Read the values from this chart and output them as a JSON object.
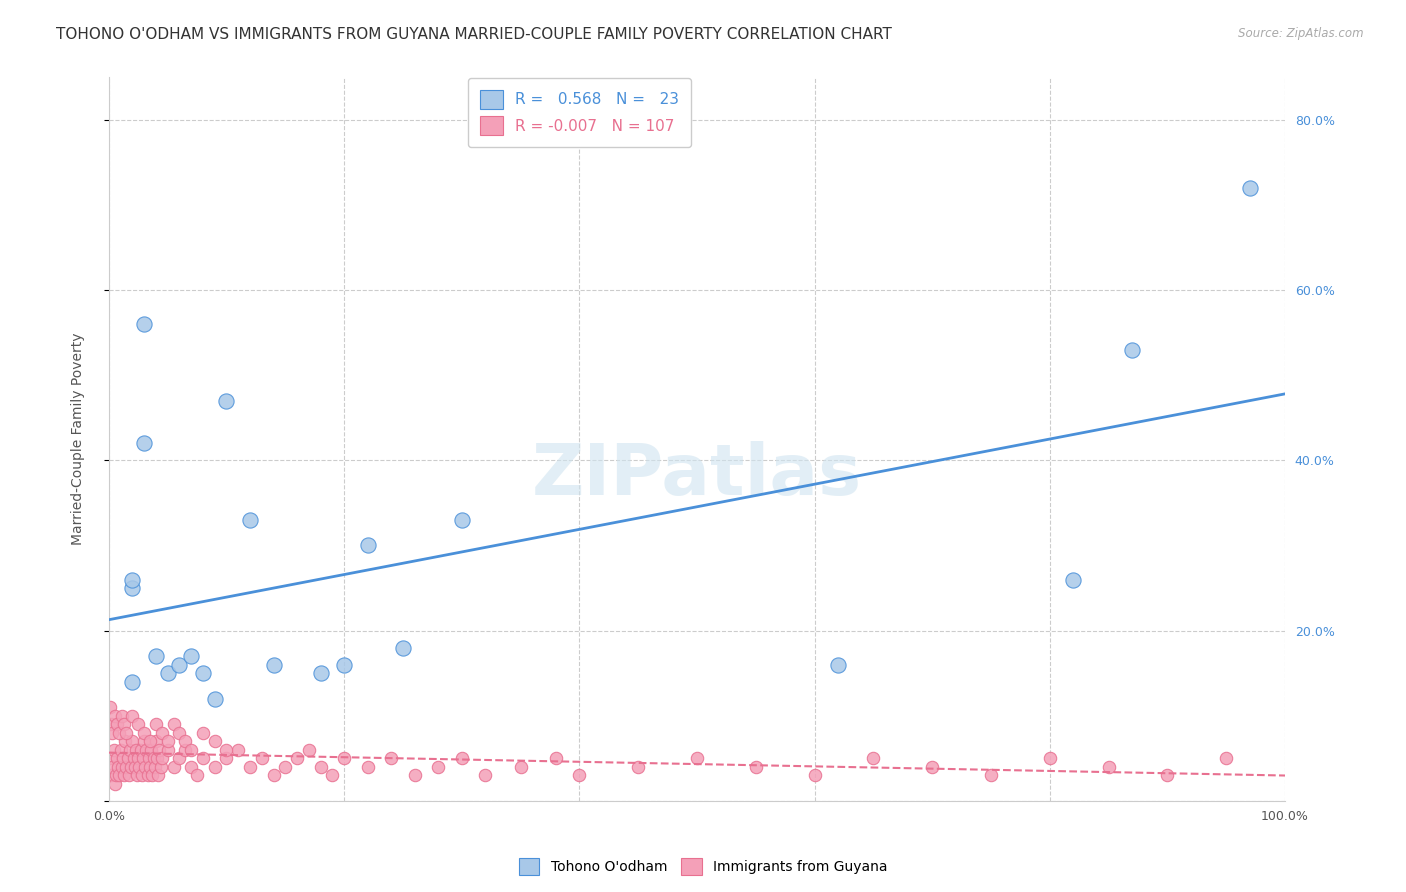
{
  "title": "TOHONO O'ODHAM VS IMMIGRANTS FROM GUYANA MARRIED-COUPLE FAMILY POVERTY CORRELATION CHART",
  "source": "Source: ZipAtlas.com",
  "ylabel": "Married-Couple Family Poverty",
  "xlim": [
    0.0,
    1.0
  ],
  "ylim": [
    0.0,
    0.85
  ],
  "blue_R": 0.568,
  "blue_N": 23,
  "pink_R": -0.007,
  "pink_N": 107,
  "blue_color": "#a8c8e8",
  "pink_color": "#f4a0b8",
  "blue_line_color": "#4a90d9",
  "pink_line_color": "#e87090",
  "watermark": "ZIPatlas",
  "blue_points_x": [
    0.02,
    0.02,
    0.03,
    0.03,
    0.04,
    0.05,
    0.06,
    0.07,
    0.08,
    0.09,
    0.1,
    0.12,
    0.14,
    0.18,
    0.2,
    0.22,
    0.25,
    0.3,
    0.62,
    0.82,
    0.87,
    0.97,
    0.02
  ],
  "blue_points_y": [
    0.25,
    0.14,
    0.56,
    0.42,
    0.17,
    0.15,
    0.16,
    0.17,
    0.15,
    0.12,
    0.47,
    0.33,
    0.16,
    0.15,
    0.16,
    0.3,
    0.18,
    0.33,
    0.16,
    0.26,
    0.53,
    0.72,
    0.26
  ],
  "pink_points_x": [
    0.001,
    0.002,
    0.003,
    0.004,
    0.005,
    0.006,
    0.007,
    0.008,
    0.009,
    0.01,
    0.011,
    0.012,
    0.013,
    0.014,
    0.015,
    0.016,
    0.017,
    0.018,
    0.019,
    0.02,
    0.021,
    0.022,
    0.023,
    0.024,
    0.025,
    0.026,
    0.027,
    0.028,
    0.029,
    0.03,
    0.031,
    0.032,
    0.033,
    0.034,
    0.035,
    0.036,
    0.037,
    0.038,
    0.039,
    0.04,
    0.041,
    0.042,
    0.043,
    0.044,
    0.045,
    0.05,
    0.055,
    0.06,
    0.065,
    0.07,
    0.075,
    0.08,
    0.09,
    0.1,
    0.11,
    0.12,
    0.13,
    0.14,
    0.15,
    0.16,
    0.17,
    0.18,
    0.19,
    0.2,
    0.22,
    0.24,
    0.26,
    0.28,
    0.3,
    0.32,
    0.35,
    0.38,
    0.4,
    0.45,
    0.5,
    0.55,
    0.6,
    0.65,
    0.7,
    0.75,
    0.8,
    0.85,
    0.9,
    0.95,
    0.001,
    0.002,
    0.003,
    0.005,
    0.007,
    0.009,
    0.011,
    0.013,
    0.015,
    0.02,
    0.025,
    0.03,
    0.035,
    0.04,
    0.045,
    0.05,
    0.055,
    0.06,
    0.065,
    0.07,
    0.08,
    0.09,
    0.1
  ],
  "pink_points_y": [
    0.05,
    0.03,
    0.04,
    0.06,
    0.02,
    0.03,
    0.05,
    0.04,
    0.03,
    0.06,
    0.04,
    0.05,
    0.03,
    0.07,
    0.04,
    0.05,
    0.03,
    0.06,
    0.04,
    0.07,
    0.05,
    0.04,
    0.06,
    0.03,
    0.05,
    0.04,
    0.06,
    0.03,
    0.05,
    0.07,
    0.04,
    0.06,
    0.03,
    0.05,
    0.04,
    0.06,
    0.03,
    0.05,
    0.04,
    0.07,
    0.05,
    0.03,
    0.06,
    0.04,
    0.05,
    0.06,
    0.04,
    0.05,
    0.06,
    0.04,
    0.03,
    0.05,
    0.04,
    0.05,
    0.06,
    0.04,
    0.05,
    0.03,
    0.04,
    0.05,
    0.06,
    0.04,
    0.03,
    0.05,
    0.04,
    0.05,
    0.03,
    0.04,
    0.05,
    0.03,
    0.04,
    0.05,
    0.03,
    0.04,
    0.05,
    0.04,
    0.03,
    0.05,
    0.04,
    0.03,
    0.05,
    0.04,
    0.03,
    0.05,
    0.11,
    0.09,
    0.08,
    0.1,
    0.09,
    0.08,
    0.1,
    0.09,
    0.08,
    0.1,
    0.09,
    0.08,
    0.07,
    0.09,
    0.08,
    0.07,
    0.09,
    0.08,
    0.07,
    0.06,
    0.08,
    0.07,
    0.06
  ],
  "legend_labels": [
    "Tohono O'odham",
    "Immigrants from Guyana"
  ],
  "title_fontsize": 11,
  "axis_fontsize": 10,
  "tick_fontsize": 9
}
